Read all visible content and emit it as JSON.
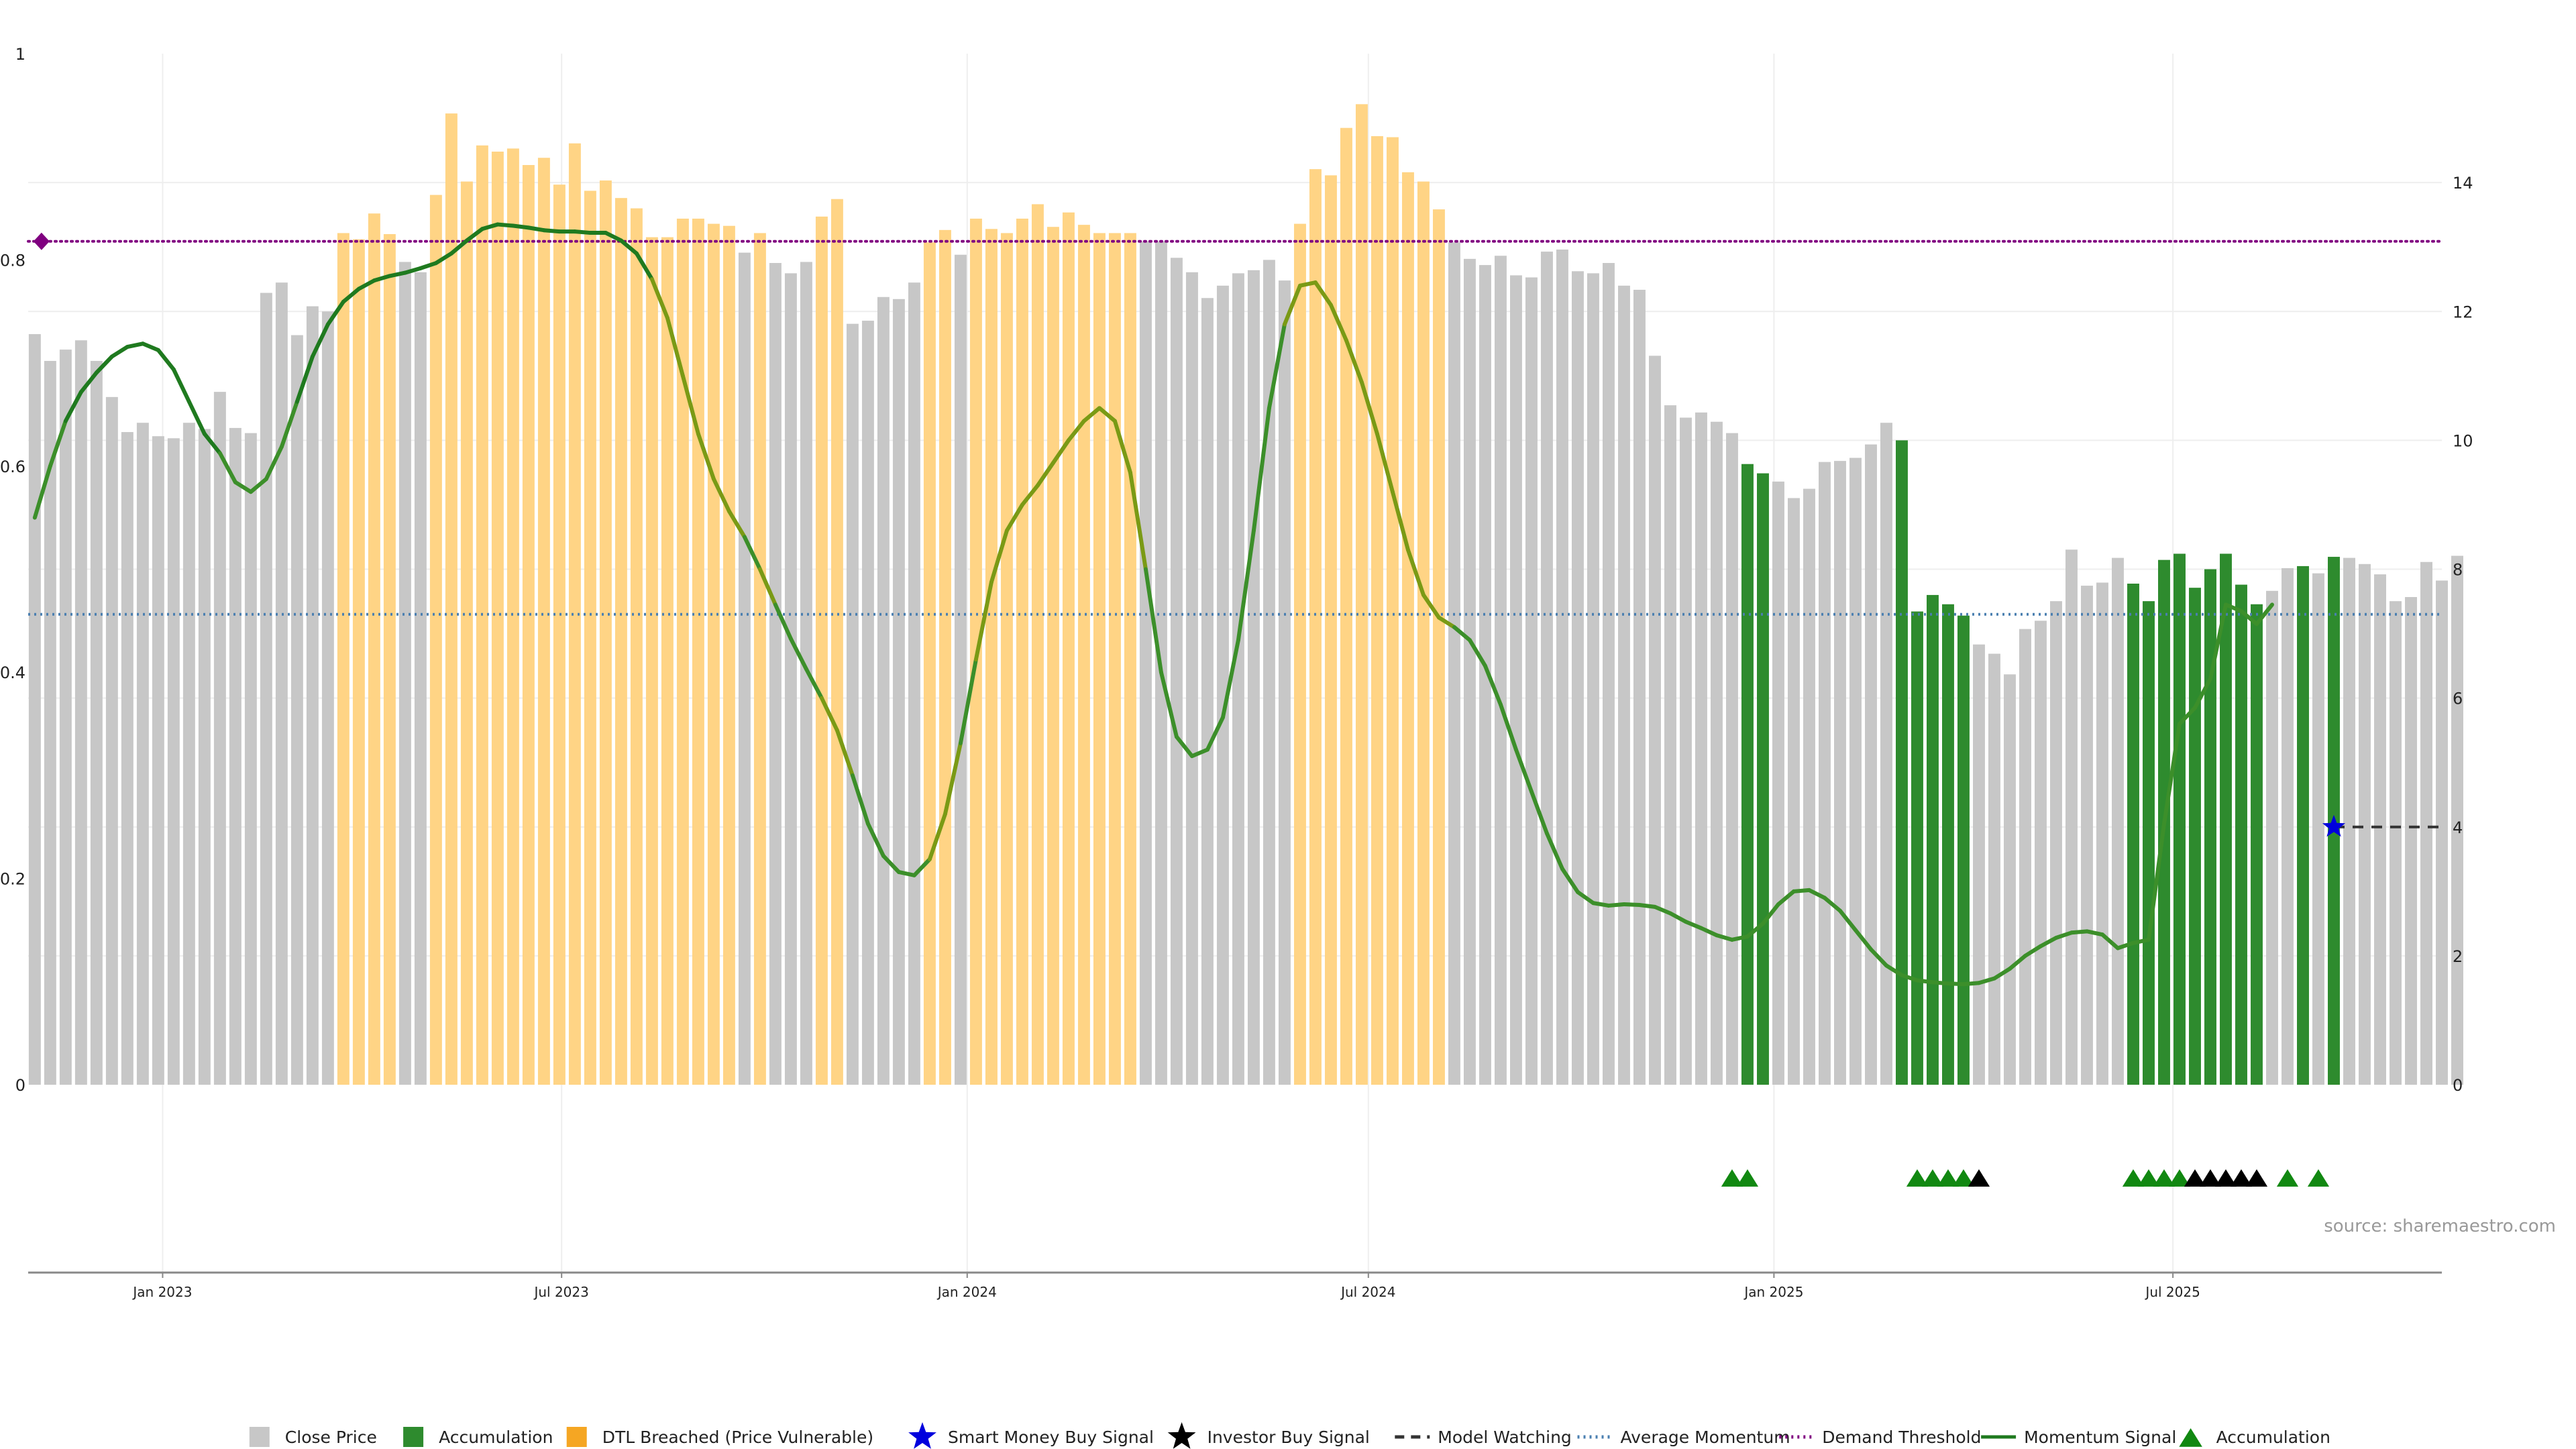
{
  "chart_data": {
    "type": "bar",
    "colors": {
      "close_price": "#c7c7c7",
      "accumulation": "#2e8b2e",
      "dtl_breached": "#ffd485",
      "dtl_legend": "#f5a623",
      "momentum": "#3c8f2a",
      "momentum_strong": "#1f7a1f",
      "momentum_mid": "#7a9a15",
      "demand_threshold": "#800080",
      "average_momentum": "#4a7fb0",
      "model_watching": "#333333",
      "smart_money": "#0000dd",
      "investor_buy": "#000000",
      "accum_marker": "#118811",
      "grid": "#eeeeee"
    },
    "left_axis": {
      "ylim": [
        0,
        1
      ],
      "ticks": [
        "0",
        "0.2",
        "0.4",
        "0.6",
        "0.8",
        "1"
      ]
    },
    "right_axis": {
      "ylim": [
        0,
        16
      ],
      "ticks": [
        "0",
        "2",
        "4",
        "6",
        "8",
        "10",
        "12",
        "14"
      ]
    },
    "x_ticks": [
      "Jan 2023",
      "Jul 2023",
      "Jan 2024",
      "Jul 2024",
      "Jan 2025",
      "Jul 2025"
    ],
    "x_range": [
      "2022-11-01",
      "2025-10-31"
    ],
    "bars": {
      "start_date": "2022-11-04",
      "step_days": 7,
      "values": [
        0.728,
        0.702,
        0.713,
        0.722,
        0.702,
        0.667,
        0.633,
        0.642,
        0.629,
        0.627,
        0.642,
        0.636,
        0.672,
        0.637,
        0.632,
        0.768,
        0.778,
        0.727,
        0.755,
        0.75,
        0.826,
        0.82,
        0.845,
        0.825,
        0.798,
        0.788,
        0.863,
        0.942,
        0.876,
        0.911,
        0.905,
        0.908,
        0.892,
        0.899,
        0.873,
        0.913,
        0.867,
        0.877,
        0.86,
        0.85,
        0.822,
        0.822,
        0.84,
        0.84,
        0.835,
        0.833,
        0.807,
        0.826,
        0.797,
        0.787,
        0.798,
        0.842,
        0.859,
        0.738,
        0.741,
        0.764,
        0.762,
        0.778,
        0.817,
        0.829,
        0.805,
        0.84,
        0.83,
        0.826,
        0.84,
        0.854,
        0.832,
        0.846,
        0.834,
        0.826,
        0.826,
        0.826,
        0.818,
        0.818,
        0.802,
        0.788,
        0.763,
        0.775,
        0.787,
        0.79,
        0.8,
        0.78,
        0.835,
        0.888,
        0.882,
        0.928,
        0.951,
        0.92,
        0.919,
        0.885,
        0.876,
        0.849,
        0.817,
        0.801,
        0.795,
        0.804,
        0.785,
        0.783,
        0.808,
        0.81,
        0.789,
        0.787,
        0.797,
        0.775,
        0.771,
        0.707,
        0.659,
        0.647,
        0.652,
        0.643,
        0.632,
        0.602,
        0.593,
        0.585,
        0.569,
        0.578,
        0.604,
        0.605,
        0.608,
        0.621,
        0.642,
        0.625,
        0.459,
        0.475,
        0.466,
        0.455,
        0.427,
        0.418,
        0.398,
        0.442,
        0.45,
        0.469,
        0.519,
        0.484,
        0.487,
        0.511,
        0.486,
        0.469,
        0.509,
        0.515,
        0.482,
        0.5,
        0.515,
        0.485,
        0.466,
        0.479,
        0.501,
        0.503,
        0.496,
        0.512,
        0.511,
        0.505,
        0.495,
        0.469,
        0.473,
        0.507,
        0.489,
        0.513
      ],
      "categories": [
        "close",
        "close",
        "close",
        "close",
        "close",
        "close",
        "close",
        "close",
        "close",
        "close",
        "close",
        "close",
        "close",
        "close",
        "close",
        "close",
        "close",
        "close",
        "close",
        "close",
        "dtl",
        "dtl",
        "dtl",
        "dtl",
        "close",
        "close",
        "dtl",
        "dtl",
        "dtl",
        "dtl",
        "dtl",
        "dtl",
        "dtl",
        "dtl",
        "dtl",
        "dtl",
        "dtl",
        "dtl",
        "dtl",
        "dtl",
        "dtl",
        "dtl",
        "dtl",
        "dtl",
        "dtl",
        "dtl",
        "close",
        "dtl",
        "close",
        "close",
        "close",
        "dtl",
        "dtl",
        "close",
        "close",
        "close",
        "close",
        "close",
        "dtl",
        "dtl",
        "close",
        "dtl",
        "dtl",
        "dtl",
        "dtl",
        "dtl",
        "dtl",
        "dtl",
        "dtl",
        "dtl",
        "dtl",
        "dtl",
        "close",
        "close",
        "close",
        "close",
        "close",
        "close",
        "close",
        "close",
        "close",
        "close",
        "dtl",
        "dtl",
        "dtl",
        "dtl",
        "dtl",
        "dtl",
        "dtl",
        "dtl",
        "dtl",
        "dtl",
        "close",
        "close",
        "close",
        "close",
        "close",
        "close",
        "close",
        "close",
        "close",
        "close",
        "close",
        "close",
        "close",
        "close",
        "close",
        "close",
        "close",
        "close",
        "close",
        "acc",
        "acc",
        "close",
        "close",
        "close",
        "close",
        "close",
        "close",
        "close",
        "close",
        "acc",
        "acc",
        "acc",
        "acc",
        "acc",
        "close",
        "close",
        "close",
        "close",
        "close",
        "close",
        "close",
        "close",
        "close",
        "close",
        "acc",
        "acc",
        "acc",
        "acc",
        "acc",
        "acc",
        "acc",
        "acc",
        "acc",
        "close",
        "close",
        "acc",
        "close",
        "acc",
        "close",
        "close",
        "close",
        "close",
        "close",
        "close",
        "close",
        "close"
      ]
    },
    "momentum_signal": {
      "start_date": "2022-11-04",
      "step_days": 7,
      "values": [
        8.8,
        9.6,
        10.3,
        10.75,
        11.05,
        11.3,
        11.45,
        11.5,
        11.4,
        11.1,
        10.6,
        10.1,
        9.8,
        9.35,
        9.2,
        9.4,
        9.9,
        10.6,
        11.3,
        11.8,
        12.15,
        12.35,
        12.48,
        12.55,
        12.6,
        12.67,
        12.75,
        12.9,
        13.1,
        13.28,
        13.35,
        13.33,
        13.3,
        13.26,
        13.24,
        13.24,
        13.22,
        13.22,
        13.1,
        12.9,
        12.5,
        11.9,
        11.0,
        10.1,
        9.4,
        8.9,
        8.5,
        8.0,
        7.45,
        6.92,
        6.45,
        6.0,
        5.5,
        4.8,
        4.05,
        3.55,
        3.3,
        3.25,
        3.5,
        4.2,
        5.3,
        6.6,
        7.8,
        8.6,
        9.0,
        9.3,
        9.65,
        10.0,
        10.3,
        10.5,
        10.3,
        9.5,
        8.0,
        6.4,
        5.4,
        5.1,
        5.2,
        5.7,
        6.9,
        8.6,
        10.5,
        11.8,
        12.4,
        12.45,
        12.1,
        11.55,
        10.9,
        10.1,
        9.2,
        8.3,
        7.6,
        7.25,
        7.1,
        6.9,
        6.5,
        5.9,
        5.2,
        4.55,
        3.9,
        3.35,
        2.99,
        2.82,
        2.78,
        2.8,
        2.79,
        2.76,
        2.66,
        2.53,
        2.43,
        2.32,
        2.25,
        2.3,
        2.5,
        2.8,
        3.0,
        3.02,
        2.9,
        2.7,
        2.4,
        2.1,
        1.85,
        1.7,
        1.62,
        1.59,
        1.57,
        1.56,
        1.58,
        1.65,
        1.8,
        2.0,
        2.15,
        2.28,
        2.36,
        2.38,
        2.33,
        2.12,
        2.2,
        2.25,
        4.05,
        5.6,
        5.85,
        6.3,
        7.45,
        7.35,
        7.15,
        7.45
      ]
    },
    "momentum_signal_dates": {
      "start_date": "2022-11-04",
      "step_days": 7
    },
    "demand_threshold": 0.818,
    "average_momentum": 7.3,
    "model_watching": {
      "start_date": "2025-09-12",
      "end_date": "2025-10-31",
      "value": 4.0
    },
    "smart_money_buy_signal": {
      "date": "2025-09-12",
      "value": 4.0
    },
    "demand_threshold_marker": {
      "date": "2022-11-04",
      "value": 0.818
    },
    "accumulation_markers": [
      "2024-12-13",
      "2024-12-20",
      "2025-03-07",
      "2025-03-14",
      "2025-03-21",
      "2025-03-28",
      "2025-06-13",
      "2025-06-20",
      "2025-06-27",
      "2025-07-04",
      "2025-08-22",
      "2025-09-05"
    ],
    "investor_buy_markers": [
      "2025-04-04",
      "2025-07-11",
      "2025-07-18",
      "2025-07-25",
      "2025-08-01",
      "2025-08-08"
    ],
    "source": "source: sharemaestro.com",
    "legend": [
      {
        "label": "Close Price",
        "kind": "square",
        "color_key": "close_price"
      },
      {
        "label": "Accumulation",
        "kind": "square",
        "color_key": "accumulation"
      },
      {
        "label": "DTL Breached (Price Vulnerable)",
        "kind": "square",
        "color_key": "dtl_legend"
      },
      {
        "label": "Smart Money Buy Signal",
        "kind": "star",
        "color_key": "smart_money"
      },
      {
        "label": "Investor Buy Signal",
        "kind": "star",
        "color_key": "investor_buy"
      },
      {
        "label": "Model Watching",
        "kind": "dashed",
        "color_key": "model_watching"
      },
      {
        "label": "Average Momentum",
        "kind": "dotted",
        "color_key": "average_momentum"
      },
      {
        "label": "Demand Threshold",
        "kind": "dotted",
        "color_key": "demand_threshold"
      },
      {
        "label": "Momentum Signal",
        "kind": "line",
        "color_key": "momentum_strong"
      },
      {
        "label": "Accumulation",
        "kind": "triangle",
        "color_key": "accum_marker"
      }
    ]
  }
}
